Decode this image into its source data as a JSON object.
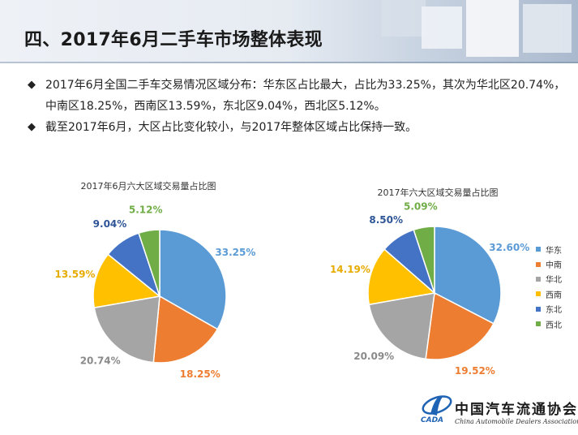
{
  "header": {
    "title": "四、2017年6月二手车市场整体表现"
  },
  "bullets": [
    "2017年6月全国二手车交易情况区域分布：华东区占比最大，占比为33.25%，其次为华北区20.74%，中南区18.25%，西南区13.59%，东北区9.04%，西北区5.12%。",
    "截至2017年6月，大区占比变化较小，与2017年整体区域占比保持一致。"
  ],
  "bullet_marker": "◆",
  "colors": {
    "华东": "#5b9bd5",
    "中南": "#ed7d31",
    "华北": "#a5a5a5",
    "西南": "#ffc000",
    "东北": "#4472c4",
    "西北": "#70ad47"
  },
  "label_colors": {
    "华东": "#5b9bd5",
    "中南": "#ed7d31",
    "华北": "#8a8a8a",
    "西南": "#e6ac00",
    "东北": "#2f5597",
    "西北": "#70ad47"
  },
  "chart_data": [
    {
      "type": "pie",
      "title": "2017年6月六大区域交易量占比图",
      "categories": [
        "华东",
        "中南",
        "华北",
        "西南",
        "东北",
        "西北"
      ],
      "values": [
        33.25,
        18.25,
        20.74,
        13.59,
        9.04,
        5.12
      ],
      "labels": [
        "33.25%",
        "18.25%",
        "20.74%",
        "13.59%",
        "9.04%",
        "5.12%"
      ],
      "legend": "none"
    },
    {
      "type": "pie",
      "title": "2017年六大区域交易量占比图",
      "categories": [
        "华东",
        "中南",
        "华北",
        "西南",
        "东北",
        "西北"
      ],
      "values": [
        32.6,
        19.52,
        20.09,
        14.19,
        8.5,
        5.09
      ],
      "labels": [
        "32.60%",
        "19.52%",
        "20.09%",
        "14.19%",
        "8.50%",
        "5.09%"
      ],
      "legend": "right"
    }
  ],
  "legend": [
    "华东",
    "中南",
    "华北",
    "西南",
    "东北",
    "西北"
  ],
  "logo": {
    "name": "中国汽车流通协会",
    "abbr": "CADA",
    "subtitle": "China Automobile Dealers Association"
  }
}
